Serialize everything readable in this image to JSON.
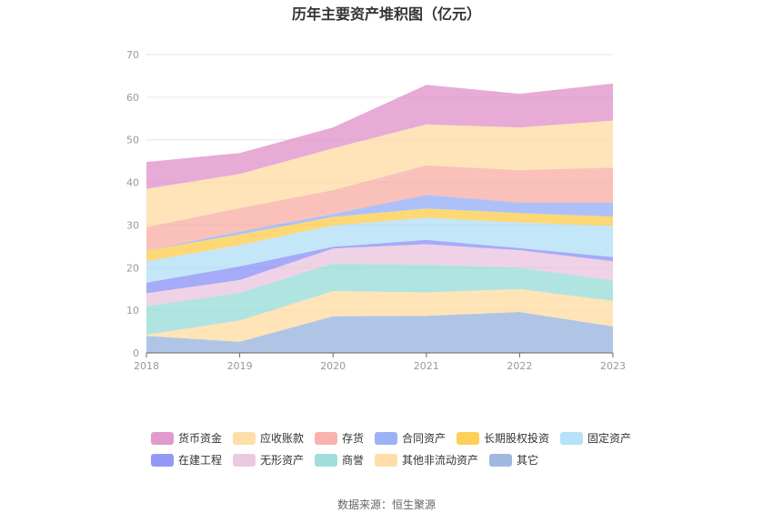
{
  "chart_data": {
    "type": "area",
    "stacked": true,
    "title": "历年主要资产堆积图（亿元）",
    "x": [
      "2018",
      "2019",
      "2020",
      "2021",
      "2022",
      "2023"
    ],
    "ylim": [
      0,
      70
    ],
    "yticks": [
      0,
      10,
      20,
      30,
      40,
      50,
      60,
      70
    ],
    "grid": true,
    "legend_position": "bottom",
    "series": [
      {
        "name": "其它",
        "color": "#8EACDA",
        "values": [
          4.0,
          2.6,
          8.6,
          8.7,
          9.6,
          6.2
        ]
      },
      {
        "name": "其他非流动资产",
        "color": "#FFD99A",
        "values": [
          0.3,
          5.0,
          5.9,
          5.5,
          5.4,
          6.0
        ]
      },
      {
        "name": "商誉",
        "color": "#8FD8D4",
        "values": [
          6.7,
          6.5,
          6.5,
          6.5,
          5.0,
          4.8
        ]
      },
      {
        "name": "无形资产",
        "color": "#EABFDC",
        "values": [
          3.0,
          3.0,
          3.5,
          4.8,
          4.1,
          4.5
        ]
      },
      {
        "name": "在建工程",
        "color": "#7F87F5",
        "values": [
          2.5,
          3.2,
          0.4,
          1.0,
          0.5,
          1.0
        ]
      },
      {
        "name": "固定资产",
        "color": "#A9DCF7",
        "values": [
          5.0,
          5.0,
          5.0,
          5.2,
          6.0,
          7.3
        ]
      },
      {
        "name": "长期股权投资",
        "color": "#FCC83C",
        "values": [
          2.5,
          2.5,
          2.0,
          2.2,
          2.2,
          2.2
        ]
      },
      {
        "name": "合同资产",
        "color": "#8AA6F5",
        "values": [
          0.0,
          0.7,
          0.7,
          3.2,
          2.5,
          3.3
        ]
      },
      {
        "name": "存货",
        "color": "#F8A69E",
        "values": [
          5.5,
          5.5,
          5.6,
          6.9,
          7.6,
          8.2
        ]
      },
      {
        "name": "应收账款",
        "color": "#FDD99A",
        "values": [
          9.0,
          8.0,
          9.8,
          9.6,
          10.0,
          11.0
        ]
      },
      {
        "name": "货币资金",
        "color": "#DD88C4",
        "values": [
          6.3,
          4.9,
          4.9,
          9.3,
          7.9,
          8.7
        ]
      }
    ],
    "legend_order": [
      "货币资金",
      "应收账款",
      "存货",
      "合同资产",
      "长期股权投资",
      "固定资产",
      "在建工程",
      "无形资产",
      "商誉",
      "其他非流动资产",
      "其它"
    ]
  },
  "source_text": "数据来源：恒生聚源"
}
